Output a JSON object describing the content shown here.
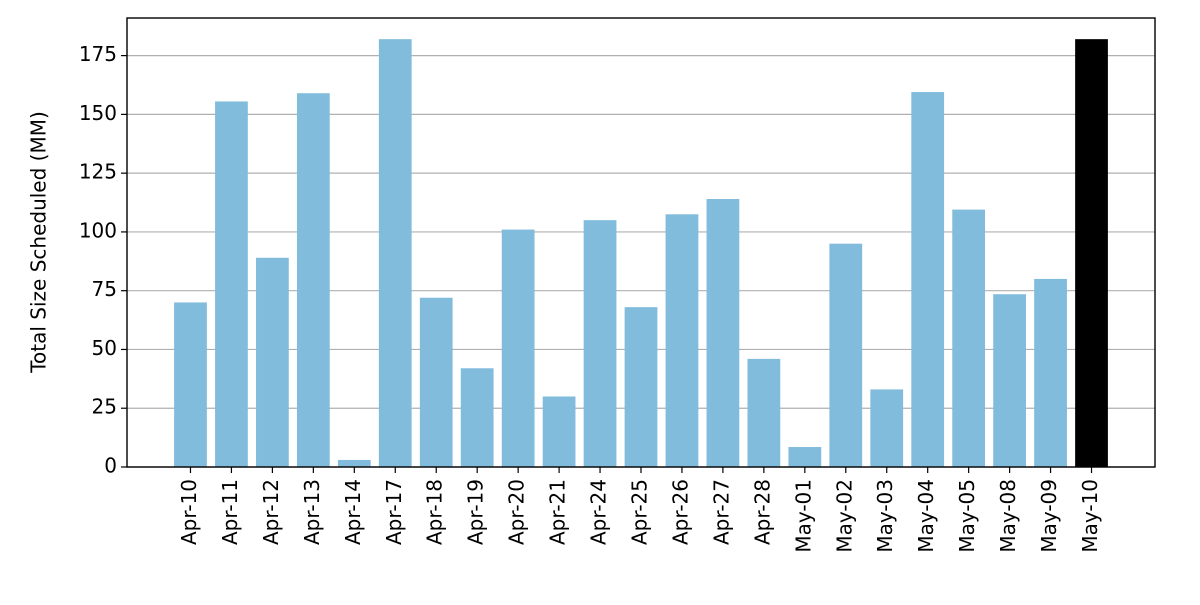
{
  "chart_data": {
    "type": "bar",
    "y_label": "Total Size Scheduled (MM)",
    "categories": [
      "Apr-10",
      "Apr-11",
      "Apr-12",
      "Apr-13",
      "Apr-14",
      "Apr-17",
      "Apr-18",
      "Apr-19",
      "Apr-20",
      "Apr-21",
      "Apr-24",
      "Apr-25",
      "Apr-26",
      "Apr-27",
      "Apr-28",
      "May-01",
      "May-02",
      "May-03",
      "May-04",
      "May-05",
      "May-08",
      "May-09",
      "May-10"
    ],
    "values": [
      70,
      155.5,
      89,
      159,
      3,
      182,
      72,
      42,
      101,
      30,
      105,
      68,
      107.5,
      114,
      46,
      8.5,
      95,
      33,
      159.5,
      109.5,
      73.5,
      80,
      182
    ],
    "colors": [
      "#82bcdc",
      "#82bcdc",
      "#82bcdc",
      "#82bcdc",
      "#82bcdc",
      "#82bcdc",
      "#82bcdc",
      "#82bcdc",
      "#82bcdc",
      "#82bcdc",
      "#82bcdc",
      "#82bcdc",
      "#82bcdc",
      "#82bcdc",
      "#82bcdc",
      "#82bcdc",
      "#82bcdc",
      "#82bcdc",
      "#82bcdc",
      "#82bcdc",
      "#82bcdc",
      "#82bcdc",
      "#000000"
    ],
    "ylim": [
      0,
      191
    ],
    "yticks": [
      0,
      25,
      50,
      75,
      100,
      125,
      150,
      175
    ],
    "grid": true
  }
}
